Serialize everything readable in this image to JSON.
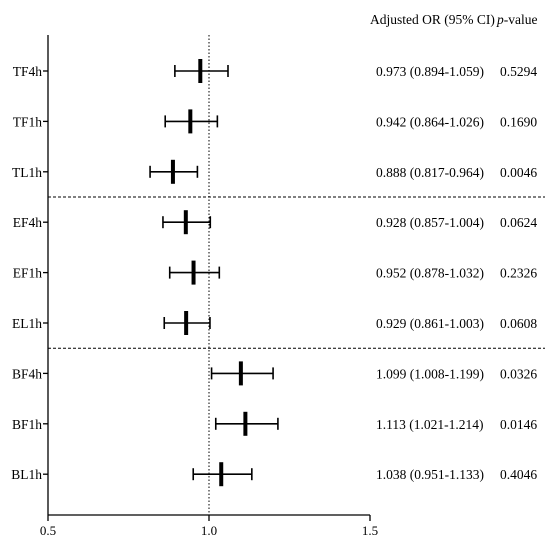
{
  "chart_data": {
    "type": "forest",
    "column_headers": {
      "estimate": "Adjusted OR (95% CI)",
      "p_value_italic": "p",
      "p_value_rest": "-value"
    },
    "x_ticks": [
      "0.5",
      "1.0",
      "1.5"
    ],
    "x_range": [
      0.5,
      1.5
    ],
    "reference_line": 1.0,
    "rows": [
      {
        "label": "TF4h",
        "or": 0.973,
        "lo": 0.894,
        "hi": 1.059,
        "text": "0.973 (0.894-1.059)",
        "p": "0.5294"
      },
      {
        "label": "TF1h",
        "or": 0.942,
        "lo": 0.864,
        "hi": 1.026,
        "text": "0.942 (0.864-1.026)",
        "p": "0.1690"
      },
      {
        "label": "TL1h",
        "or": 0.888,
        "lo": 0.817,
        "hi": 0.964,
        "text": "0.888 (0.817-0.964)",
        "p": "0.0046"
      },
      {
        "label": "EF4h",
        "or": 0.928,
        "lo": 0.857,
        "hi": 1.004,
        "text": "0.928 (0.857-1.004)",
        "p": "0.0624"
      },
      {
        "label": "EF1h",
        "or": 0.952,
        "lo": 0.878,
        "hi": 1.032,
        "text": "0.952 (0.878-1.032)",
        "p": "0.2326"
      },
      {
        "label": "EL1h",
        "or": 0.929,
        "lo": 0.861,
        "hi": 1.003,
        "text": "0.929 (0.861-1.003)",
        "p": "0.0608"
      },
      {
        "label": "BF4h",
        "or": 1.099,
        "lo": 1.008,
        "hi": 1.199,
        "text": "1.099 (1.008-1.199)",
        "p": "0.0326"
      },
      {
        "label": "BF1h",
        "or": 1.113,
        "lo": 1.021,
        "hi": 1.214,
        "text": "1.113 (1.021-1.214)",
        "p": "0.0146"
      },
      {
        "label": "BL1h",
        "or": 1.038,
        "lo": 0.951,
        "hi": 1.133,
        "text": "1.038 (0.951-1.133)",
        "p": "0.4046"
      }
    ],
    "group_dividers_after_rows": [
      3,
      6
    ],
    "grid": false,
    "legend": "none"
  }
}
